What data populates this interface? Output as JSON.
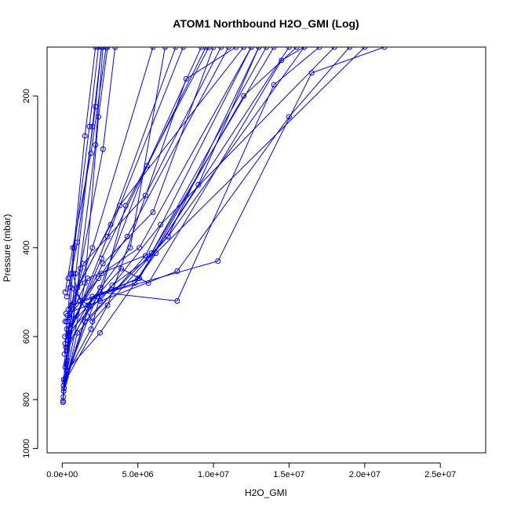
{
  "chart_data": {
    "type": "line",
    "title": "ATOM1 Northbound H2O_GMI (Log)",
    "xlabel": "H2O_GMI",
    "ylabel": "Pressure (mbar)",
    "xlim": [
      -1000000,
      28000000
    ],
    "ylim": [
      1020,
      160
    ],
    "y_inverted": true,
    "y_scale": "log",
    "x_ticks": [
      0,
      5000000,
      10000000,
      15000000,
      20000000,
      25000000
    ],
    "x_tick_labels": [
      "0.0e+00",
      "5.0e+06",
      "1.0e+07",
      "1.5e+07",
      "2.0e+07",
      "2.5e+07"
    ],
    "y_ticks": [
      200,
      400,
      600,
      800,
      1000
    ],
    "y_tick_labels": [
      "200",
      "400",
      "600",
      "800",
      "1000"
    ],
    "series_color": "#0000ff",
    "marker": "open-circle",
    "series": [
      {
        "points": [
          [
            50000,
            810
          ],
          [
            300000,
            560
          ],
          [
            2000000,
            400
          ],
          [
            6000000,
            160
          ]
        ]
      },
      {
        "points": [
          [
            60000,
            805
          ],
          [
            400000,
            600
          ],
          [
            3000000,
            380
          ],
          [
            8000000,
            160
          ]
        ]
      },
      {
        "points": [
          [
            80000,
            790
          ],
          [
            500000,
            590
          ],
          [
            2600000,
            420
          ],
          [
            9500000,
            160
          ]
        ]
      },
      {
        "points": [
          [
            100000,
            770
          ],
          [
            1000000,
            590
          ],
          [
            5500000,
            415
          ],
          [
            12500000,
            160
          ]
        ]
      },
      {
        "points": [
          [
            120000,
            760
          ],
          [
            1500000,
            560
          ],
          [
            7000000,
            380
          ],
          [
            13000000,
            160
          ]
        ]
      },
      {
        "points": [
          [
            90000,
            750
          ],
          [
            2000000,
            500
          ],
          [
            10300000,
            425
          ],
          [
            16500000,
            180
          ],
          [
            21300000,
            160
          ]
        ]
      },
      {
        "points": [
          [
            150000,
            740
          ],
          [
            3000000,
            520
          ],
          [
            8200000,
            185
          ],
          [
            11500000,
            160
          ]
        ]
      },
      {
        "points": [
          [
            200000,
            730
          ],
          [
            2500000,
            480
          ],
          [
            5600000,
            275
          ],
          [
            9200000,
            160
          ]
        ]
      },
      {
        "points": [
          [
            250000,
            720
          ],
          [
            1500000,
            470
          ],
          [
            2400000,
            220
          ],
          [
            3000000,
            160
          ]
        ]
      },
      {
        "points": [
          [
            300000,
            700
          ],
          [
            1000000,
            480
          ],
          [
            2200000,
            250
          ],
          [
            2700000,
            160
          ]
        ]
      },
      {
        "points": [
          [
            200000,
            690
          ],
          [
            900000,
            450
          ],
          [
            2000000,
            230
          ],
          [
            2600000,
            160
          ]
        ]
      },
      {
        "points": [
          [
            250000,
            680
          ],
          [
            800000,
            400
          ],
          [
            1800000,
            230
          ],
          [
            2400000,
            160
          ]
        ]
      },
      {
        "points": [
          [
            300000,
            670
          ],
          [
            1200000,
            440
          ],
          [
            2700000,
            255
          ],
          [
            3500000,
            160
          ]
        ]
      },
      {
        "points": [
          [
            150000,
            650
          ],
          [
            600000,
            450
          ],
          [
            1500000,
            240
          ],
          [
            2200000,
            160
          ]
        ]
      },
      {
        "points": [
          [
            300000,
            640
          ],
          [
            1800000,
            520
          ],
          [
            7600000,
            445
          ],
          [
            15000000,
            220
          ],
          [
            19000000,
            160
          ]
        ]
      },
      {
        "points": [
          [
            250000,
            630
          ],
          [
            2500000,
            490
          ],
          [
            7600000,
            510
          ],
          [
            14000000,
            190
          ],
          [
            17000000,
            160
          ]
        ]
      },
      {
        "points": [
          [
            200000,
            620
          ],
          [
            1400000,
            430
          ],
          [
            5500000,
            315
          ],
          [
            10500000,
            160
          ]
        ]
      },
      {
        "points": [
          [
            350000,
            610
          ],
          [
            2000000,
            500
          ],
          [
            5100000,
            460
          ],
          [
            12000000,
            200
          ],
          [
            15500000,
            160
          ]
        ]
      },
      {
        "points": [
          [
            180000,
            600
          ],
          [
            2700000,
            430
          ],
          [
            6000000,
            340
          ],
          [
            10000000,
            160
          ]
        ]
      },
      {
        "points": [
          [
            400000,
            590
          ],
          [
            3300000,
            475
          ],
          [
            5700000,
            420
          ],
          [
            14000000,
            160
          ]
        ]
      },
      {
        "points": [
          [
            300000,
            580
          ],
          [
            3900000,
            440
          ],
          [
            5700000,
            470
          ],
          [
            14500000,
            170
          ],
          [
            16000000,
            160
          ]
        ]
      },
      {
        "points": [
          [
            450000,
            570
          ],
          [
            2600000,
            450
          ],
          [
            5100000,
            400
          ],
          [
            12500000,
            160
          ]
        ]
      },
      {
        "points": [
          [
            200000,
            560
          ],
          [
            2400000,
            460
          ],
          [
            4300000,
            380
          ],
          [
            11000000,
            160
          ]
        ]
      },
      {
        "points": [
          [
            500000,
            550
          ],
          [
            1700000,
            460
          ],
          [
            5900000,
            410
          ],
          [
            13500000,
            160
          ]
        ]
      },
      {
        "points": [
          [
            350000,
            545
          ],
          [
            1000000,
            480
          ],
          [
            3200000,
            360
          ],
          [
            7500000,
            160
          ]
        ]
      },
      {
        "points": [
          [
            250000,
            540
          ],
          [
            2500000,
            510
          ],
          [
            6500000,
            360
          ],
          [
            18000000,
            160
          ]
        ]
      },
      {
        "points": [
          [
            400000,
            530
          ],
          [
            1200000,
            470
          ],
          [
            3800000,
            330
          ],
          [
            12000000,
            160
          ]
        ]
      },
      {
        "points": [
          [
            600000,
            520
          ],
          [
            2300000,
            500
          ],
          [
            5000000,
            460
          ],
          [
            15000000,
            160
          ]
        ]
      },
      {
        "points": [
          [
            300000,
            500
          ],
          [
            1000000,
            390
          ],
          [
            2200000,
            210
          ],
          [
            2600000,
            160
          ]
        ]
      },
      {
        "points": [
          [
            200000,
            490
          ],
          [
            700000,
            400
          ],
          [
            1900000,
            260
          ],
          [
            2900000,
            160
          ]
        ]
      },
      {
        "points": [
          [
            500000,
            480
          ],
          [
            1700000,
            520
          ],
          [
            4500000,
            400
          ],
          [
            6800000,
            160
          ]
        ]
      },
      {
        "points": [
          [
            400000,
            460
          ],
          [
            2000000,
            560
          ],
          [
            7000000,
            380
          ],
          [
            16000000,
            160
          ]
        ]
      },
      {
        "points": [
          [
            700000,
            450
          ],
          [
            1200000,
            510
          ],
          [
            4800000,
            470
          ],
          [
            9000000,
            300
          ],
          [
            13000000,
            160
          ]
        ]
      },
      {
        "points": [
          [
            300000,
            700
          ],
          [
            2500000,
            590
          ],
          [
            6200000,
            410
          ],
          [
            20000000,
            160
          ]
        ]
      },
      {
        "points": [
          [
            100000,
            730
          ],
          [
            1900000,
            580
          ],
          [
            4200000,
            330
          ],
          [
            9700000,
            160
          ]
        ]
      }
    ]
  }
}
